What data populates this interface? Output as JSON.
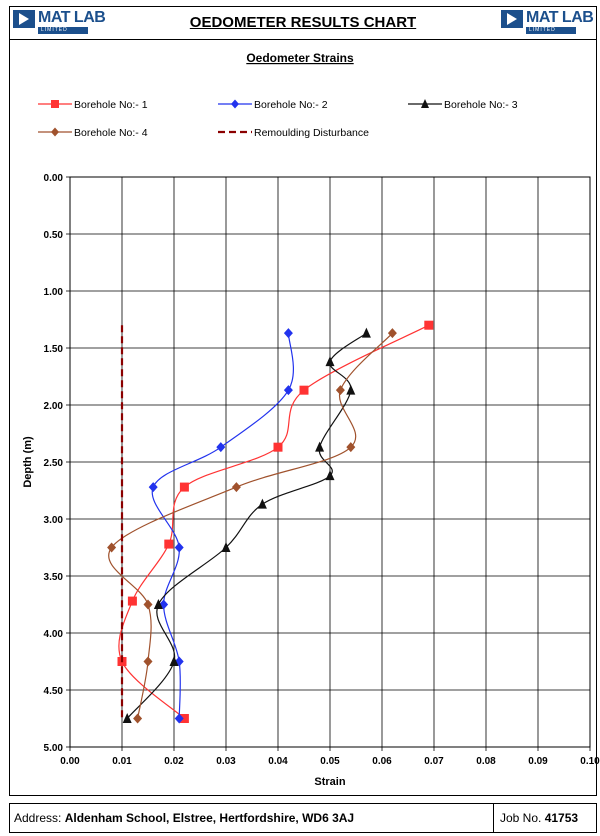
{
  "header": {
    "title": "OEDOMETER RESULTS CHART",
    "logo_left_name": "MAT LAB",
    "logo_left_sub": "LIMITED",
    "logo_right_name": "MAT LAB",
    "logo_right_sub": "LIMITED"
  },
  "footer": {
    "address_label": "Address:",
    "address_value": "Aldenham School,  Elstree,  Hertfordshire,  WD6 3AJ",
    "job_label": "Job No.",
    "job_value": "41753"
  },
  "colors": {
    "bh1": "#ff3333",
    "bh2": "#2233ee",
    "bh3": "#111111",
    "bh4": "#a0522d",
    "remould": "#8b0000",
    "logo": "#1b4f8c"
  },
  "chart_data": {
    "type": "line",
    "title": "Oedometer Strains",
    "xlabel": "Strain",
    "ylabel": "Depth (m)",
    "xlim": [
      0,
      0.1
    ],
    "ylim": [
      0,
      5
    ],
    "y_inverted": true,
    "grid": true,
    "legend_position": "top",
    "x_ticks": [
      "0.00",
      "0.01",
      "0.02",
      "0.03",
      "0.04",
      "0.05",
      "0.06",
      "0.07",
      "0.08",
      "0.09",
      "0.10"
    ],
    "y_ticks": [
      "0.00",
      "0.50",
      "1.00",
      "1.50",
      "2.00",
      "2.50",
      "3.00",
      "3.50",
      "4.00",
      "4.50",
      "5.00"
    ],
    "series": [
      {
        "name": "Borehole No:- 1",
        "marker": "square",
        "color": "#ff3333",
        "x": [
          0.069,
          0.045,
          0.04,
          0.022,
          0.019,
          0.012,
          0.01,
          0.022
        ],
        "y": [
          1.3,
          1.87,
          2.37,
          2.72,
          3.22,
          3.72,
          4.25,
          4.75
        ]
      },
      {
        "name": "Borehole No:- 2",
        "marker": "diamond",
        "color": "#2233ee",
        "x": [
          0.042,
          0.042,
          0.029,
          0.016,
          0.021,
          0.018,
          0.021,
          0.021
        ],
        "y": [
          1.37,
          1.87,
          2.37,
          2.72,
          3.25,
          3.75,
          4.25,
          4.75
        ]
      },
      {
        "name": "Borehole No:- 3",
        "marker": "triangle",
        "color": "#111111",
        "x": [
          0.057,
          0.05,
          0.054,
          0.048,
          0.05,
          0.037,
          0.03,
          0.017,
          0.02,
          0.011
        ],
        "y": [
          1.37,
          1.62,
          1.87,
          2.37,
          2.62,
          2.87,
          3.25,
          3.75,
          4.25,
          4.75
        ]
      },
      {
        "name": "Borehole No:- 4",
        "marker": "diamond",
        "color": "#a0522d",
        "x": [
          0.062,
          0.052,
          0.054,
          0.032,
          0.008,
          0.015,
          0.015,
          0.013
        ],
        "y": [
          1.37,
          1.87,
          2.37,
          2.72,
          3.25,
          3.75,
          4.25,
          4.75
        ]
      },
      {
        "name": "Remoulding Disturbance",
        "marker": "none",
        "color": "#8b0000",
        "dashed": true,
        "x": [
          0.01,
          0.01
        ],
        "y": [
          1.3,
          4.75
        ]
      }
    ]
  }
}
